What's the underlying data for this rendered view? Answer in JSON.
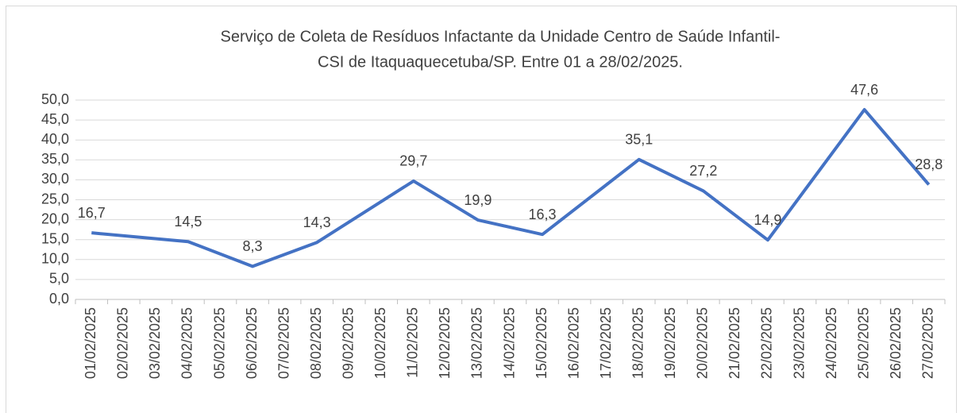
{
  "chart_data": {
    "type": "line",
    "title": [
      "Serviço de Coleta de Resíduos Infactante da Unidade Centro de Saúde Infantil-",
      "CSI de Itaquaquecetuba/SP. Entre 01 a 28/02/2025."
    ],
    "categories": [
      "01/02/2025",
      "02/02/2025",
      "03/02/2025",
      "04/02/2025",
      "05/02/2025",
      "06/02/2025",
      "07/02/2025",
      "08/02/2025",
      "09/02/2025",
      "10/02/2025",
      "11/02/2025",
      "12/02/2025",
      "13/02/2025",
      "14/02/2025",
      "15/02/2025",
      "16/02/2025",
      "17/02/2025",
      "18/02/2025",
      "19/02/2025",
      "20/02/2025",
      "21/02/2025",
      "22/02/2025",
      "23/02/2025",
      "24/02/2025",
      "25/02/2025",
      "26/02/2025",
      "27/02/2025"
    ],
    "x": [
      "01/02/2025",
      "04/02/2025",
      "06/02/2025",
      "08/02/2025",
      "11/02/2025",
      "13/02/2025",
      "15/02/2025",
      "18/02/2025",
      "20/02/2025",
      "22/02/2025",
      "25/02/2025",
      "27/02/2025"
    ],
    "series": [
      {
        "color": "#4472c4",
        "values": [
          16.7,
          14.5,
          8.3,
          14.3,
          29.7,
          19.9,
          16.3,
          35.1,
          27.2,
          14.9,
          47.6,
          28.8
        ],
        "value_labels": [
          "16,7",
          "14,5",
          "8,3",
          "14,3",
          "29,7",
          "19,9",
          "16,3",
          "35,1",
          "27,2",
          "14,9",
          "47,6",
          "28,8"
        ]
      }
    ],
    "ylim": [
      0,
      50
    ],
    "yticks": [
      {
        "value": 0,
        "label": "0,0"
      },
      {
        "value": 5,
        "label": "5,0"
      },
      {
        "value": 10,
        "label": "10,0"
      },
      {
        "value": 15,
        "label": "15,0"
      },
      {
        "value": 20,
        "label": "20,0"
      },
      {
        "value": 25,
        "label": "25,0"
      },
      {
        "value": 30,
        "label": "30,0"
      },
      {
        "value": 35,
        "label": "35,0"
      },
      {
        "value": 40,
        "label": "40,0"
      },
      {
        "value": 45,
        "label": "45,0"
      },
      {
        "value": 50,
        "label": "50,0"
      }
    ],
    "grid": true
  }
}
